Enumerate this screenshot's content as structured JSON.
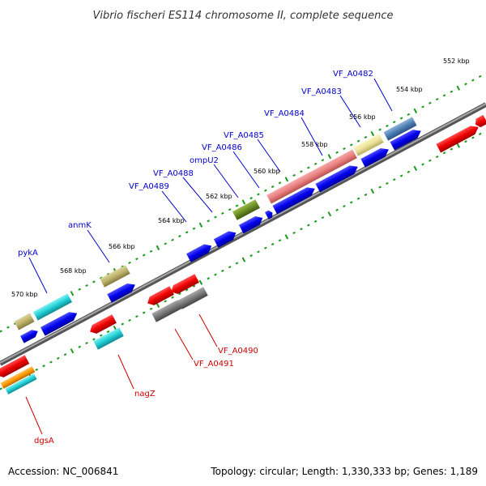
{
  "title": "Vibrio fischeri ES114 chromosome II, complete sequence",
  "footer": {
    "accession": "Accession: NC_006841",
    "summary": "Topology: circular; Length: 1,330,333 bp; Genes: 1,189"
  },
  "colors": {
    "backbone": "#777777",
    "tick": "#1a9a1a",
    "label_forward": "#0000cc",
    "label_reverse": "#cc0000",
    "leader_forward": "#0000cc",
    "leader_reverse": "#cc0000"
  },
  "ticks": [
    "552 kbp",
    "554 kbp",
    "556 kbp",
    "558 kbp",
    "560 kbp",
    "562 kbp",
    "564 kbp",
    "566 kbp",
    "568 kbp",
    "570 kbp"
  ],
  "labels_forward": [
    "VF_A0482",
    "VF_A0483",
    "VF_A0484",
    "VF_A0485",
    "VF_A0486",
    "ompU2",
    "VF_A0488",
    "VF_A0489",
    "anmK",
    "pykA"
  ],
  "labels_reverse": [
    "VF_A0490",
    "VF_A0491",
    "nagZ",
    "dgsA"
  ]
}
